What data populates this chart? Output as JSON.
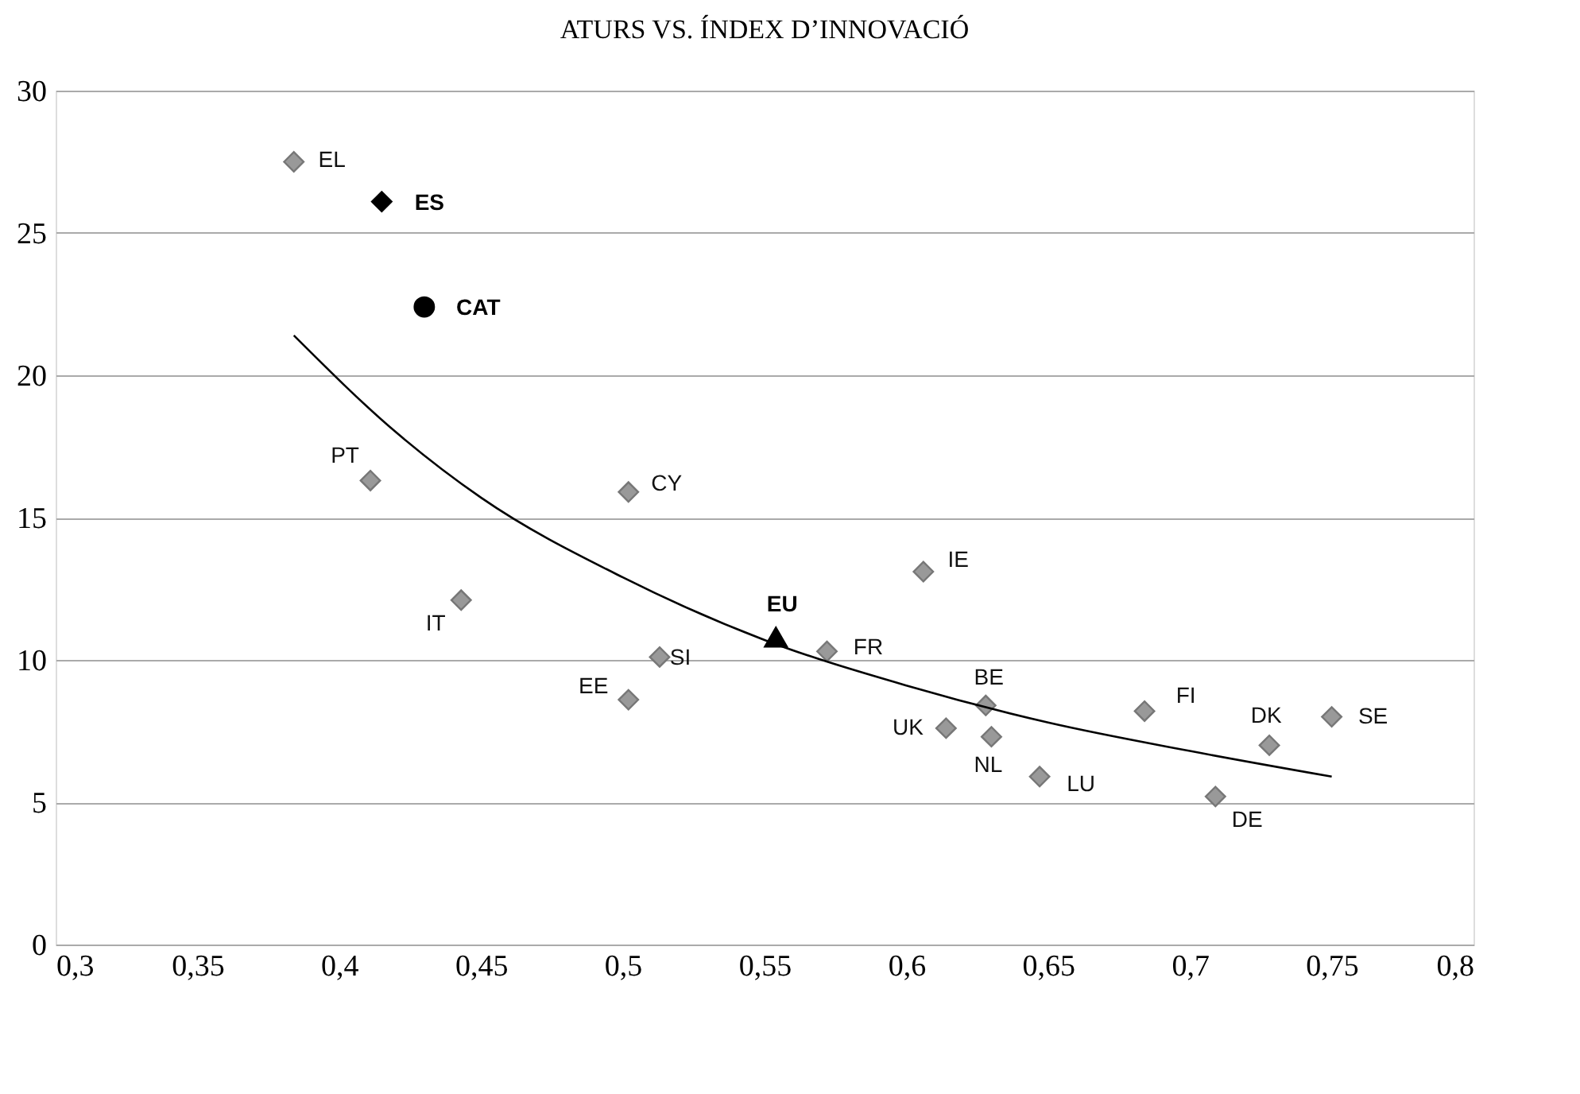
{
  "chart_data": {
    "type": "scatter",
    "title": "ATURS VS. ÍNDEX D’INNOVACIÓ",
    "xlim": [
      0.3,
      0.8
    ],
    "xticks": [
      {
        "value": 0.3,
        "label": "0,3"
      },
      {
        "value": 0.35,
        "label": "0,35"
      },
      {
        "value": 0.4,
        "label": "0,4"
      },
      {
        "value": 0.45,
        "label": "0,45"
      },
      {
        "value": 0.5,
        "label": "0,5"
      },
      {
        "value": 0.55,
        "label": "0,55"
      },
      {
        "value": 0.6,
        "label": "0,6"
      },
      {
        "value": 0.65,
        "label": "0,65"
      },
      {
        "value": 0.7,
        "label": "0,7"
      },
      {
        "value": 0.75,
        "label": "0,75"
      },
      {
        "value": 0.8,
        "label": "0,8"
      }
    ],
    "ylim": [
      0,
      30
    ],
    "yticks": [
      0,
      5,
      10,
      15,
      20,
      25,
      30
    ],
    "grid": "y",
    "series": [
      {
        "color": "#999999",
        "marker": "diamond",
        "x": [
          0.384,
          0.411,
          0.502,
          0.443,
          0.502,
          0.513,
          0.606,
          0.572,
          0.628,
          0.614,
          0.63,
          0.647,
          0.684,
          0.728,
          0.75,
          0.709
        ],
        "values": [
          27.5,
          16.3,
          15.9,
          12.1,
          8.6,
          10.1,
          13.1,
          10.3,
          8.4,
          7.6,
          7.3,
          5.9,
          8.2,
          7.0,
          8.0,
          5.2
        ]
      },
      {
        "name": "ES",
        "color": "#000000",
        "marker": "diamond",
        "x": [
          0.415
        ],
        "values": [
          26.1
        ]
      },
      {
        "name": "CAT",
        "color": "#000000",
        "marker": "circle",
        "x": [
          0.43
        ],
        "values": [
          22.4
        ]
      },
      {
        "name": "EU",
        "color": "#000000",
        "marker": "triangle",
        "x": [
          0.554
        ],
        "values": [
          10.8
        ]
      },
      {
        "type": "line",
        "color": "#000000",
        "marker": "none",
        "x": [
          0.384,
          0.42,
          0.45,
          0.5,
          0.55,
          0.6,
          0.65,
          0.7,
          0.75
        ],
        "values": [
          21.4,
          18.0,
          15.7,
          12.9,
          10.7,
          9.1,
          7.8,
          6.8,
          5.9
        ]
      }
    ],
    "annotations": [
      {
        "text": "EL",
        "x": 0.384,
        "y": 27.5
      },
      {
        "text": "PT",
        "x": 0.411,
        "y": 16.3
      },
      {
        "text": "CY",
        "x": 0.502,
        "y": 15.9
      },
      {
        "text": "IT",
        "x": 0.443,
        "y": 12.1
      },
      {
        "text": "EE",
        "x": 0.502,
        "y": 8.6
      },
      {
        "text": "SI",
        "x": 0.513,
        "y": 10.1
      },
      {
        "text": "IE",
        "x": 0.606,
        "y": 13.1
      },
      {
        "text": "FR",
        "x": 0.572,
        "y": 10.3
      },
      {
        "text": "BE",
        "x": 0.628,
        "y": 8.4
      },
      {
        "text": "UK",
        "x": 0.614,
        "y": 7.6
      },
      {
        "text": "NL",
        "x": 0.63,
        "y": 7.3
      },
      {
        "text": "LU",
        "x": 0.647,
        "y": 5.9
      },
      {
        "text": "FI",
        "x": 0.684,
        "y": 8.2
      },
      {
        "text": "DK",
        "x": 0.728,
        "y": 7.0
      },
      {
        "text": "SE",
        "x": 0.75,
        "y": 8.0
      },
      {
        "text": "DE",
        "x": 0.709,
        "y": 5.2
      }
    ]
  }
}
